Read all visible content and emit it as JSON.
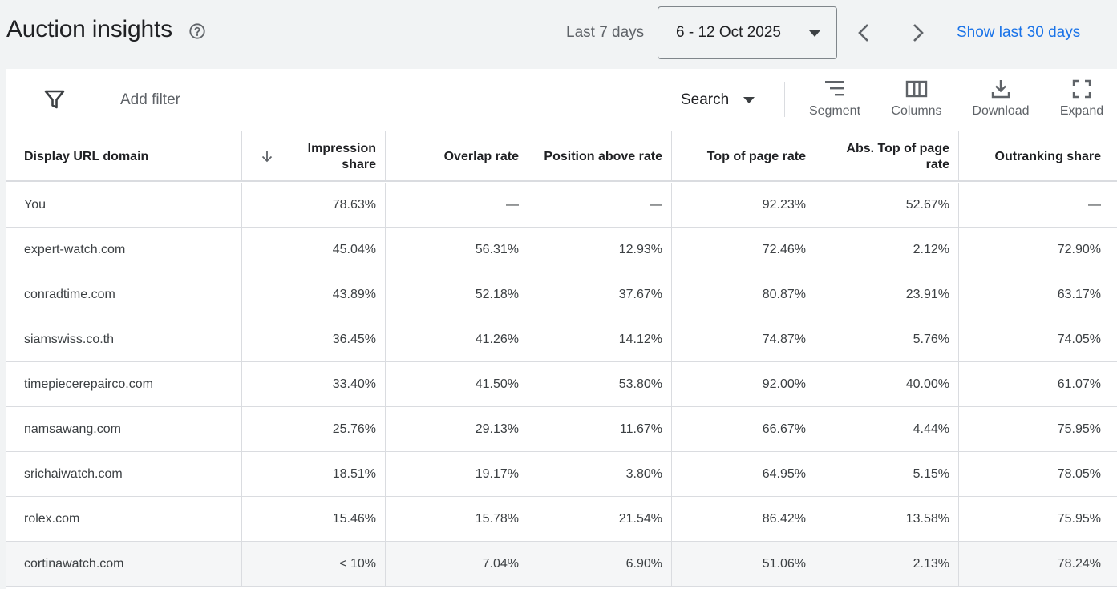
{
  "header": {
    "title": "Auction insights",
    "range_label": "Last 7 days",
    "date_range": "6 - 12 Oct 2025",
    "show_30_label": "Show last 30 days"
  },
  "toolbar": {
    "add_filter": "Add filter",
    "network": "Search",
    "segment": "Segment",
    "columns": "Columns",
    "download": "Download",
    "expand": "Expand"
  },
  "table": {
    "headers": [
      "Display URL domain",
      "Impression share",
      "Overlap rate",
      "Position above rate",
      "Top of page rate",
      "Abs. Top of page rate",
      "Outranking share"
    ],
    "rows": [
      [
        "You",
        "78.63%",
        "—",
        "—",
        "92.23%",
        "52.67%",
        "—"
      ],
      [
        "expert-watch.com",
        "45.04%",
        "56.31%",
        "12.93%",
        "72.46%",
        "2.12%",
        "72.90%"
      ],
      [
        "conradtime.com",
        "43.89%",
        "52.18%",
        "37.67%",
        "80.87%",
        "23.91%",
        "63.17%"
      ],
      [
        "siamswiss.co.th",
        "36.45%",
        "41.26%",
        "14.12%",
        "74.87%",
        "5.76%",
        "74.05%"
      ],
      [
        "timepiecerepairco.com",
        "33.40%",
        "41.50%",
        "53.80%",
        "92.00%",
        "40.00%",
        "61.07%"
      ],
      [
        "namsawang.com",
        "25.76%",
        "29.13%",
        "11.67%",
        "66.67%",
        "4.44%",
        "75.95%"
      ],
      [
        "srichaiwatch.com",
        "18.51%",
        "19.17%",
        "3.80%",
        "64.95%",
        "5.15%",
        "78.05%"
      ],
      [
        "rolex.com",
        "15.46%",
        "15.78%",
        "21.54%",
        "86.42%",
        "13.58%",
        "75.95%"
      ],
      [
        "cortinawatch.com",
        "< 10%",
        "7.04%",
        "6.90%",
        "51.06%",
        "2.13%",
        "78.24%"
      ]
    ]
  },
  "colors": {
    "accent": "#1a73e8",
    "page_bg": "#f1f3f4",
    "border": "#dadce0"
  }
}
